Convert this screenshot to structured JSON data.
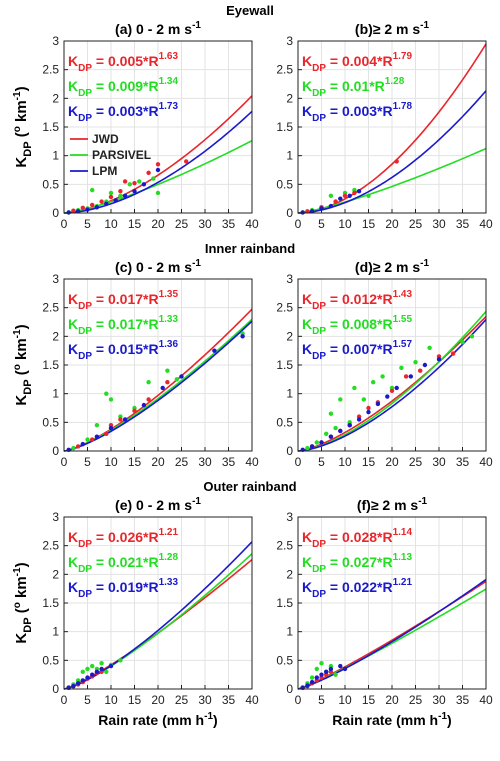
{
  "colors": {
    "JWD": "#e8262b",
    "PARSIVEL": "#22dd22",
    "LPM": "#1a1acc"
  },
  "legend": [
    "JWD",
    "PARSIVEL",
    "LPM"
  ],
  "xlabel": "Rain rate (mm h",
  "xlabel_sup": "-1",
  "xlabel_end": ")",
  "ylabel_main": "K",
  "ylabel_sub": "DP",
  "ylabel_rest": " (",
  "ylabel_deg": "o",
  "ylabel_unit": " km",
  "ylabel_sup": "-1",
  "ylabel_end": ")",
  "chart_data": [
    {
      "type": "scatter",
      "row": 0,
      "col": 0,
      "section_title": "Eyewall",
      "title": "(a) 0 - 2 m s",
      "title_sup": "-1",
      "xlim": [
        0,
        40
      ],
      "ylim": [
        0,
        3
      ],
      "xticks": [
        0,
        5,
        10,
        15,
        20,
        25,
        30,
        35,
        40
      ],
      "yticks": [
        0,
        0.5,
        1,
        1.5,
        2,
        2.5,
        3
      ],
      "grid": true,
      "legend": "left",
      "fits": [
        {
          "series": "JWD",
          "a_label": "0.005",
          "a": 0.005,
          "b": 1.63,
          "b_label": "1.63"
        },
        {
          "series": "PARSIVEL",
          "a_label": "0.009",
          "a": 0.009,
          "b": 1.34,
          "b_label": "1.34"
        },
        {
          "series": "LPM",
          "a_label": "0.003",
          "a": 0.003,
          "b": 1.73,
          "b_label": "1.73"
        }
      ],
      "points": {
        "JWD": [
          [
            2,
            0.04
          ],
          [
            4,
            0.09
          ],
          [
            6,
            0.14
          ],
          [
            8,
            0.2
          ],
          [
            10,
            0.28
          ],
          [
            12,
            0.38
          ],
          [
            13,
            0.55
          ],
          [
            15,
            0.52
          ],
          [
            18,
            0.7
          ],
          [
            20,
            0.85
          ],
          [
            26,
            0.9
          ]
        ],
        "PARSIVEL": [
          [
            1,
            0.01
          ],
          [
            3,
            0.05
          ],
          [
            5,
            0.08
          ],
          [
            6,
            0.4
          ],
          [
            7,
            0.12
          ],
          [
            9,
            0.2
          ],
          [
            10,
            0.35
          ],
          [
            12,
            0.3
          ],
          [
            14,
            0.5
          ],
          [
            16,
            0.55
          ],
          [
            19,
            0.6
          ],
          [
            20,
            0.35
          ]
        ],
        "LPM": [
          [
            1,
            0.01
          ],
          [
            3,
            0.03
          ],
          [
            5,
            0.06
          ],
          [
            7,
            0.1
          ],
          [
            9,
            0.16
          ],
          [
            11,
            0.22
          ],
          [
            13,
            0.3
          ],
          [
            15,
            0.38
          ],
          [
            17,
            0.5
          ],
          [
            20,
            0.75
          ]
        ]
      }
    },
    {
      "type": "scatter",
      "row": 0,
      "col": 1,
      "title": "(b)≥ 2 m s",
      "title_sup": "-1",
      "xlim": [
        0,
        40
      ],
      "ylim": [
        0,
        3
      ],
      "xticks": [
        0,
        5,
        10,
        15,
        20,
        25,
        30,
        35,
        40
      ],
      "yticks": [
        0,
        0.5,
        1,
        1.5,
        2,
        2.5,
        3
      ],
      "grid": true,
      "fits": [
        {
          "series": "JWD",
          "a_label": "0.004",
          "a": 0.004,
          "b": 1.79,
          "b_label": "1.79"
        },
        {
          "series": "PARSIVEL",
          "a_label": "0.01",
          "a": 0.01,
          "b": 1.28,
          "b_label": "1.28"
        },
        {
          "series": "LPM",
          "a_label": "0.003",
          "a": 0.003,
          "b": 1.78,
          "b_label": "1.78"
        }
      ],
      "points": {
        "JWD": [
          [
            2,
            0.03
          ],
          [
            5,
            0.1
          ],
          [
            8,
            0.2
          ],
          [
            10,
            0.3
          ],
          [
            12,
            0.35
          ],
          [
            21,
            0.9
          ]
        ],
        "PARSIVEL": [
          [
            1,
            0.01
          ],
          [
            3,
            0.05
          ],
          [
            5,
            0.1
          ],
          [
            7,
            0.3
          ],
          [
            8,
            0.2
          ],
          [
            10,
            0.35
          ],
          [
            12,
            0.4
          ],
          [
            15,
            0.3
          ]
        ],
        "LPM": [
          [
            1,
            0.01
          ],
          [
            3,
            0.03
          ],
          [
            5,
            0.08
          ],
          [
            7,
            0.12
          ],
          [
            9,
            0.25
          ],
          [
            11,
            0.3
          ],
          [
            13,
            0.38
          ]
        ]
      }
    },
    {
      "type": "scatter",
      "row": 1,
      "col": 0,
      "section_title": "Inner rainband",
      "title": "(c) 0 - 2 m s",
      "title_sup": "-1",
      "xlim": [
        0,
        40
      ],
      "ylim": [
        0,
        3
      ],
      "xticks": [
        0,
        5,
        10,
        15,
        20,
        25,
        30,
        35,
        40
      ],
      "yticks": [
        0,
        0.5,
        1,
        1.5,
        2,
        2.5,
        3
      ],
      "grid": true,
      "fits": [
        {
          "series": "JWD",
          "a_label": "0.017",
          "a": 0.017,
          "b": 1.35,
          "b_label": "1.35"
        },
        {
          "series": "PARSIVEL",
          "a_label": "0.017",
          "a": 0.017,
          "b": 1.33,
          "b_label": "1.33"
        },
        {
          "series": "LPM",
          "a_label": "0.015",
          "a": 0.015,
          "b": 1.36,
          "b_label": "1.36"
        }
      ],
      "points": {
        "JWD": [
          [
            3,
            0.08
          ],
          [
            6,
            0.2
          ],
          [
            9,
            0.3
          ],
          [
            10,
            0.45
          ],
          [
            12,
            0.55
          ],
          [
            15,
            0.7
          ],
          [
            18,
            0.9
          ],
          [
            22,
            1.2
          ]
        ],
        "PARSIVEL": [
          [
            2,
            0.05
          ],
          [
            5,
            0.2
          ],
          [
            7,
            0.45
          ],
          [
            9,
            1.0
          ],
          [
            10,
            0.9
          ],
          [
            12,
            0.6
          ],
          [
            15,
            0.75
          ],
          [
            18,
            1.2
          ],
          [
            22,
            1.4
          ],
          [
            24,
            1.25
          ],
          [
            38,
            2.05
          ]
        ],
        "LPM": [
          [
            1,
            0.02
          ],
          [
            4,
            0.12
          ],
          [
            7,
            0.25
          ],
          [
            10,
            0.4
          ],
          [
            13,
            0.55
          ],
          [
            17,
            0.8
          ],
          [
            21,
            1.1
          ],
          [
            25,
            1.3
          ],
          [
            32,
            1.75
          ],
          [
            38,
            2.0
          ]
        ]
      }
    },
    {
      "type": "scatter",
      "row": 1,
      "col": 1,
      "title": "(d)≥ 2 m s",
      "title_sup": "-1",
      "xlim": [
        0,
        40
      ],
      "ylim": [
        0,
        3
      ],
      "xticks": [
        0,
        5,
        10,
        15,
        20,
        25,
        30,
        35,
        40
      ],
      "yticks": [
        0,
        0.5,
        1,
        1.5,
        2,
        2.5,
        3
      ],
      "grid": true,
      "fits": [
        {
          "series": "JWD",
          "a_label": "0.012",
          "a": 0.012,
          "b": 1.43,
          "b_label": "1.43"
        },
        {
          "series": "PARSIVEL",
          "a_label": "0.008",
          "a": 0.008,
          "b": 1.55,
          "b_label": "1.55"
        },
        {
          "series": "LPM",
          "a_label": "0.007",
          "a": 0.007,
          "b": 1.57,
          "b_label": "1.57"
        }
      ],
      "points": {
        "JWD": [
          [
            3,
            0.08
          ],
          [
            5,
            0.15
          ],
          [
            7,
            0.25
          ],
          [
            9,
            0.35
          ],
          [
            11,
            0.45
          ],
          [
            13,
            0.6
          ],
          [
            15,
            0.75
          ],
          [
            17,
            0.85
          ],
          [
            20,
            1.05
          ],
          [
            23,
            1.3
          ],
          [
            26,
            1.4
          ],
          [
            30,
            1.65
          ],
          [
            33,
            1.7
          ]
        ],
        "PARSIVEL": [
          [
            2,
            0.05
          ],
          [
            4,
            0.15
          ],
          [
            6,
            0.3
          ],
          [
            7,
            0.65
          ],
          [
            8,
            0.4
          ],
          [
            9,
            0.9
          ],
          [
            11,
            0.5
          ],
          [
            12,
            1.1
          ],
          [
            14,
            0.9
          ],
          [
            16,
            1.2
          ],
          [
            18,
            1.3
          ],
          [
            20,
            1.1
          ],
          [
            22,
            1.45
          ],
          [
            25,
            1.55
          ],
          [
            28,
            1.8
          ],
          [
            35,
            1.9
          ],
          [
            37,
            2.0
          ]
        ],
        "LPM": [
          [
            1,
            0.02
          ],
          [
            3,
            0.08
          ],
          [
            5,
            0.15
          ],
          [
            7,
            0.25
          ],
          [
            9,
            0.35
          ],
          [
            11,
            0.45
          ],
          [
            13,
            0.55
          ],
          [
            15,
            0.68
          ],
          [
            17,
            0.82
          ],
          [
            19,
            0.95
          ],
          [
            21,
            1.1
          ],
          [
            24,
            1.3
          ],
          [
            27,
            1.5
          ],
          [
            30,
            1.6
          ]
        ]
      }
    },
    {
      "type": "scatter",
      "row": 2,
      "col": 0,
      "section_title": "Outer rainband",
      "title": "(e) 0 - 2 m s",
      "title_sup": "-1",
      "xlim": [
        0,
        40
      ],
      "ylim": [
        0,
        3
      ],
      "xticks": [
        0,
        5,
        10,
        15,
        20,
        25,
        30,
        35,
        40
      ],
      "yticks": [
        0,
        0.5,
        1,
        1.5,
        2,
        2.5,
        3
      ],
      "grid": true,
      "fits": [
        {
          "series": "JWD",
          "a_label": "0.026",
          "a": 0.026,
          "b": 1.21,
          "b_label": "1.21"
        },
        {
          "series": "PARSIVEL",
          "a_label": "0.021",
          "a": 0.021,
          "b": 1.28,
          "b_label": "1.28"
        },
        {
          "series": "LPM",
          "a_label": "0.019",
          "a": 0.019,
          "b": 1.33,
          "b_label": "1.33"
        }
      ],
      "points": {
        "JWD": [
          [
            1,
            0.02
          ],
          [
            2,
            0.05
          ],
          [
            3,
            0.08
          ],
          [
            4,
            0.12
          ],
          [
            5,
            0.18
          ],
          [
            6,
            0.22
          ],
          [
            7,
            0.28
          ],
          [
            8,
            0.3
          ]
        ],
        "PARSIVEL": [
          [
            1,
            0.03
          ],
          [
            2,
            0.08
          ],
          [
            3,
            0.15
          ],
          [
            4,
            0.3
          ],
          [
            5,
            0.35
          ],
          [
            6,
            0.4
          ],
          [
            7,
            0.35
          ],
          [
            8,
            0.45
          ],
          [
            9,
            0.3
          ],
          [
            10,
            0.42
          ],
          [
            12,
            0.5
          ]
        ],
        "LPM": [
          [
            1,
            0.02
          ],
          [
            2,
            0.05
          ],
          [
            3,
            0.1
          ],
          [
            4,
            0.15
          ],
          [
            5,
            0.2
          ],
          [
            6,
            0.25
          ],
          [
            7,
            0.3
          ],
          [
            8,
            0.35
          ],
          [
            10,
            0.4
          ]
        ]
      }
    },
    {
      "type": "scatter",
      "row": 2,
      "col": 1,
      "title": "(f)≥ 2 m s",
      "title_sup": "-1",
      "xlim": [
        0,
        40
      ],
      "ylim": [
        0,
        3
      ],
      "xticks": [
        0,
        5,
        10,
        15,
        20,
        25,
        30,
        35,
        40
      ],
      "yticks": [
        0,
        0.5,
        1,
        1.5,
        2,
        2.5,
        3
      ],
      "grid": true,
      "fits": [
        {
          "series": "JWD",
          "a_label": "0.028",
          "a": 0.028,
          "b": 1.14,
          "b_label": "1.14"
        },
        {
          "series": "PARSIVEL",
          "a_label": "0.027",
          "a": 0.027,
          "b": 1.13,
          "b_label": "1.13"
        },
        {
          "series": "LPM",
          "a_label": "0.022",
          "a": 0.022,
          "b": 1.21,
          "b_label": "1.21"
        }
      ],
      "points": {
        "JWD": [
          [
            1,
            0.02
          ],
          [
            2,
            0.05
          ],
          [
            3,
            0.1
          ],
          [
            4,
            0.15
          ],
          [
            5,
            0.2
          ],
          [
            6,
            0.25
          ],
          [
            7,
            0.3
          ]
        ],
        "PARSIVEL": [
          [
            1,
            0.03
          ],
          [
            2,
            0.1
          ],
          [
            3,
            0.2
          ],
          [
            4,
            0.35
          ],
          [
            5,
            0.45
          ],
          [
            6,
            0.3
          ],
          [
            7,
            0.4
          ],
          [
            8,
            0.25
          ]
        ],
        "LPM": [
          [
            1,
            0.02
          ],
          [
            2,
            0.06
          ],
          [
            3,
            0.12
          ],
          [
            4,
            0.2
          ],
          [
            5,
            0.25
          ],
          [
            6,
            0.3
          ],
          [
            7,
            0.35
          ],
          [
            9,
            0.4
          ],
          [
            10,
            0.35
          ]
        ]
      }
    }
  ]
}
